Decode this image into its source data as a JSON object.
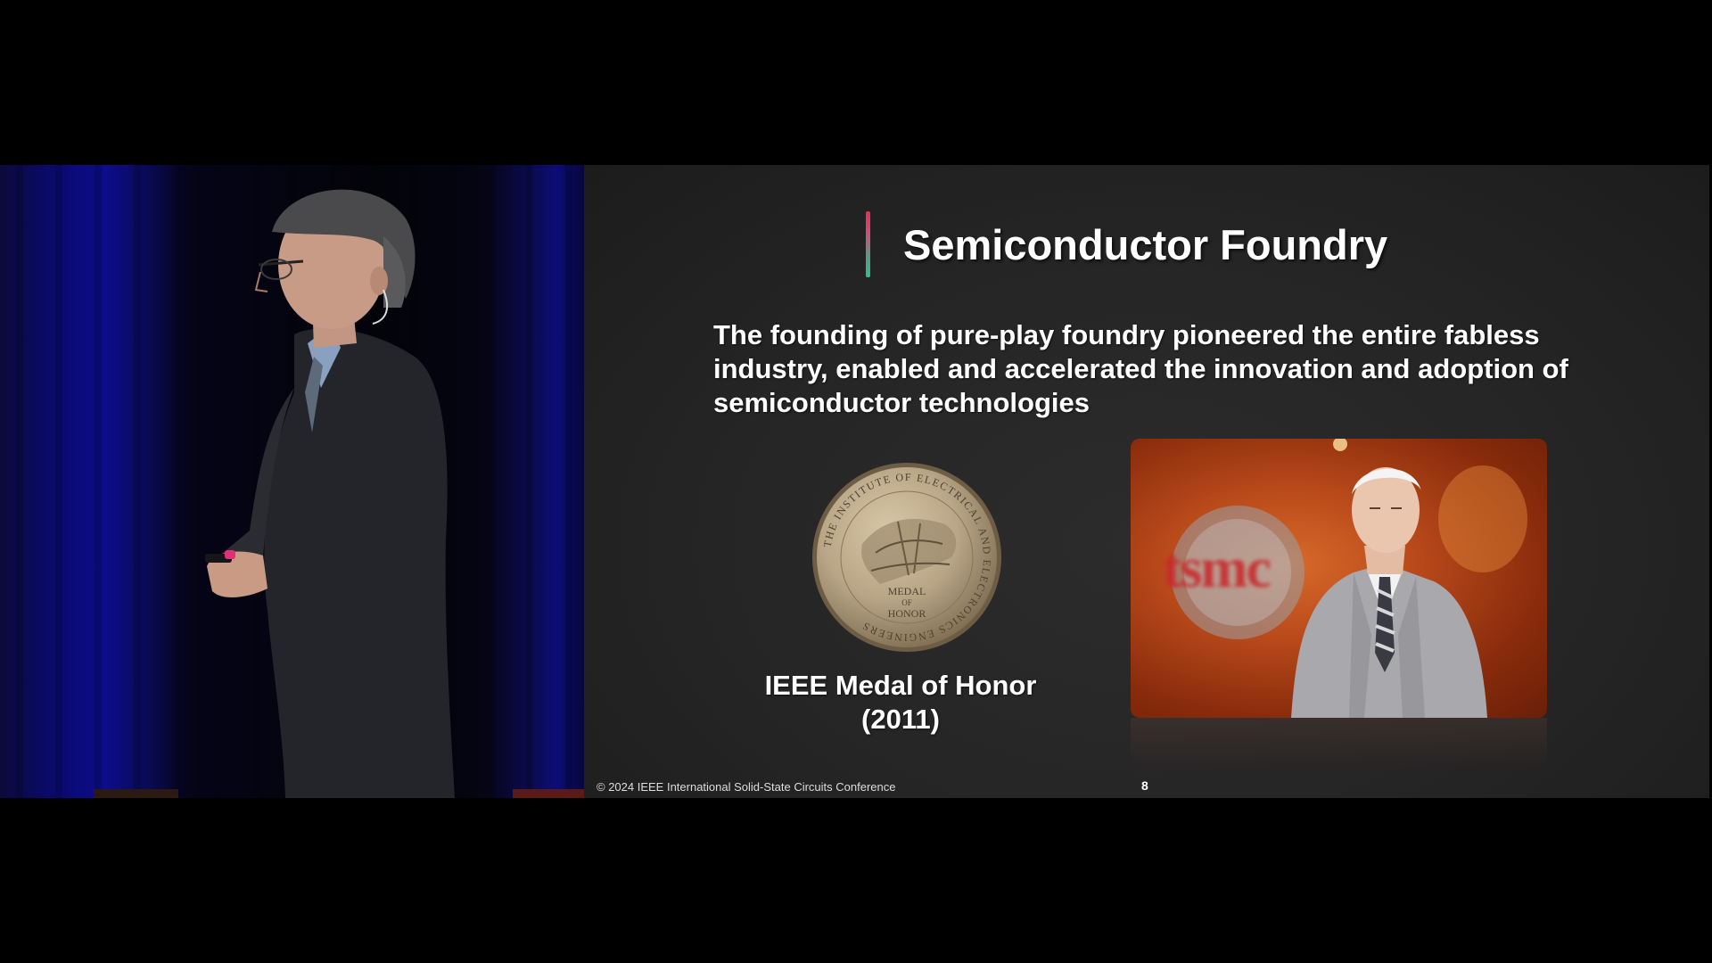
{
  "slide": {
    "title": "Semiconductor Foundry",
    "body": "The founding of pure-play foundry pioneered the entire fabless industry, enabled and accelerated the innovation and adoption of semiconductor technologies",
    "medal": {
      "caption_line1": "IEEE Medal of Honor",
      "caption_line2": "(2011)",
      "inscription_ring": "THE INSTITUTE OF ELECTRICAL AND ELECTRONICS ENGINEERS",
      "inscription_center": [
        "MEDAL",
        "OF",
        "HONOR"
      ]
    },
    "photo": {
      "background_logo": "tsmc"
    },
    "footer": "© 2024 IEEE International Solid-State Circuits Conference",
    "page_number": "8"
  },
  "colors": {
    "slide_background": "#252525",
    "title_accent_top": "#e0324f",
    "title_accent_bottom": "#2fc08a",
    "curtain_blue": "#0d0c8a",
    "medal_bronze": "#b8a586",
    "photo_orange": "#c85a20"
  }
}
